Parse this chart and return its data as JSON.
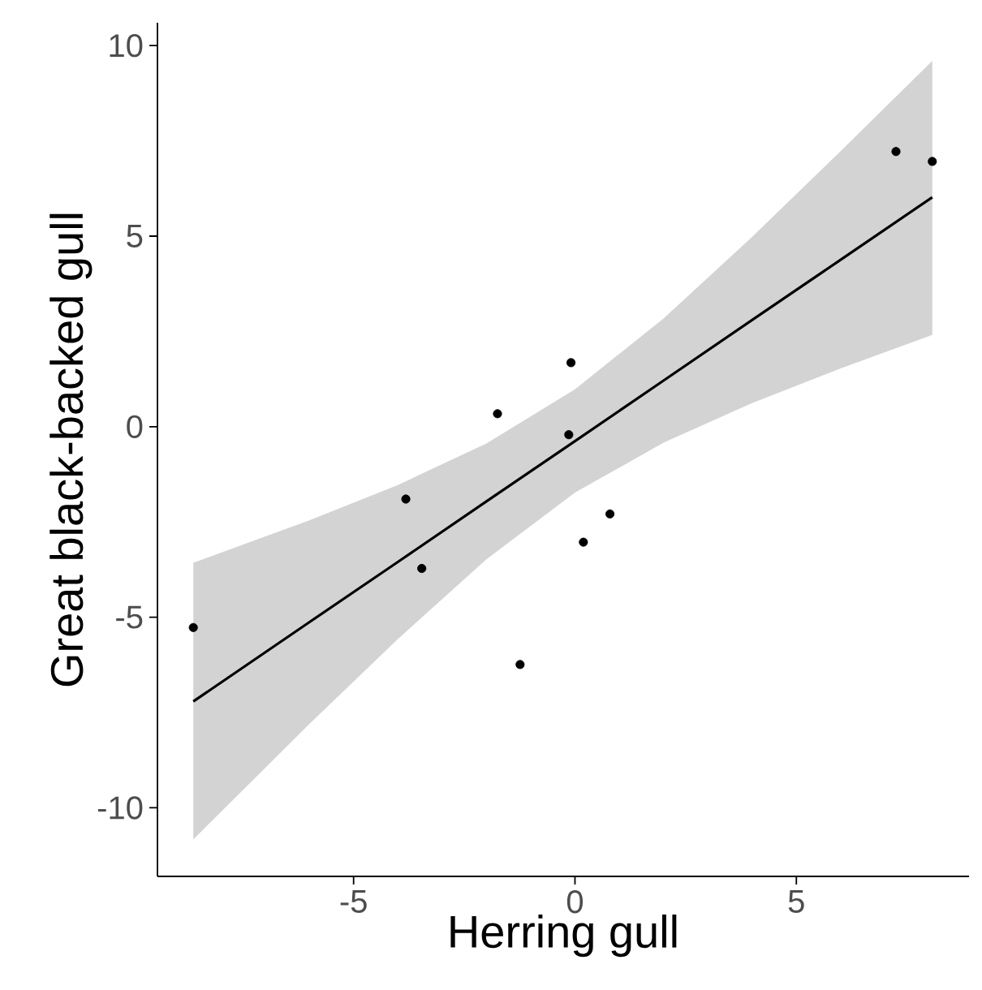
{
  "chart_data": {
    "type": "scatter",
    "xlabel": "Herring gull",
    "ylabel": "Great black-backed gull",
    "xlim": [
      -9.43,
      8.9
    ],
    "ylim": [
      -11.8,
      10.6
    ],
    "xticks": [
      -5,
      0,
      5
    ],
    "yticks": [
      -10,
      -5,
      0,
      5,
      10
    ],
    "grid": false,
    "series": [
      {
        "color": "#000000",
        "marker": "circle",
        "x": [
          7.25,
          8.07,
          -0.09,
          -1.75,
          -0.14,
          -3.82,
          -3.46,
          -8.62,
          -1.24,
          0.19,
          0.79
        ],
        "values": [
          7.22,
          6.96,
          1.68,
          0.34,
          -0.21,
          -1.9,
          -3.72,
          -5.27,
          -6.24,
          -3.03,
          -2.29
        ]
      },
      {
        "type": "line",
        "color": "#000000",
        "line_style": "solid",
        "marker": "none",
        "x": [
          -8.62,
          -6,
          -4,
          -2,
          0,
          2,
          4,
          6,
          8.07
        ],
        "values": [
          -7.21,
          -5.13,
          -3.55,
          -1.96,
          -0.38,
          1.21,
          2.8,
          4.38,
          6.02
        ],
        "lower": [
          -10.83,
          -7.8,
          -5.57,
          -3.48,
          -1.73,
          -0.42,
          0.62,
          1.53,
          2.41
        ],
        "upper": [
          -3.57,
          -2.46,
          -1.53,
          -0.44,
          0.98,
          2.84,
          4.98,
          7.23,
          9.6
        ]
      }
    ]
  }
}
